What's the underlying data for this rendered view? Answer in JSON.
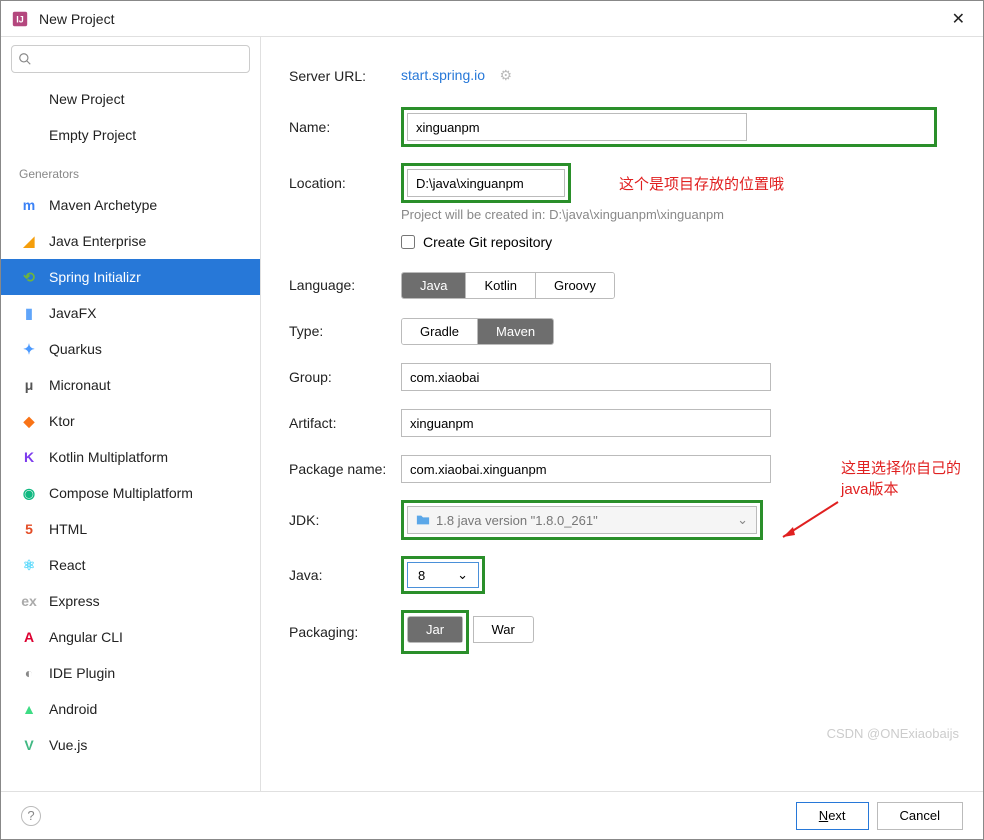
{
  "window": {
    "title": "New Project"
  },
  "sidebar": {
    "top_items": [
      {
        "label": "New Project",
        "icon": ""
      },
      {
        "label": "Empty Project",
        "icon": ""
      }
    ],
    "generators_header": "Generators",
    "generators": [
      {
        "label": "Maven Archetype",
        "icon_color": "#3b82f6",
        "icon": "m"
      },
      {
        "label": "Java Enterprise",
        "icon_color": "#f59e0b",
        "icon": "◢"
      },
      {
        "label": "Spring Initializr",
        "icon_color": "#6db33f",
        "icon": "⟲",
        "selected": true
      },
      {
        "label": "JavaFX",
        "icon_color": "#60a5fa",
        "icon": "▮"
      },
      {
        "label": "Quarkus",
        "icon_color": "#4c9aff",
        "icon": "✦"
      },
      {
        "label": "Micronaut",
        "icon_color": "#555",
        "icon": "μ"
      },
      {
        "label": "Ktor",
        "icon_color": "#f97316",
        "icon": "◆"
      },
      {
        "label": "Kotlin Multiplatform",
        "icon_color": "#7c3aed",
        "icon": "K"
      },
      {
        "label": "Compose Multiplatform",
        "icon_color": "#10b981",
        "icon": "◉"
      },
      {
        "label": "HTML",
        "icon_color": "#e34c26",
        "icon": "5"
      },
      {
        "label": "React",
        "icon_color": "#61dafb",
        "icon": "⚛"
      },
      {
        "label": "Express",
        "icon_color": "#aaa",
        "icon": "ex"
      },
      {
        "label": "Angular CLI",
        "icon_color": "#dd0031",
        "icon": "A"
      },
      {
        "label": "IDE Plugin",
        "icon_color": "#888",
        "icon": "◐"
      },
      {
        "label": "Android",
        "icon_color": "#3ddc84",
        "icon": "▲"
      },
      {
        "label": "Vue.js",
        "icon_color": "#41b883",
        "icon": "V"
      }
    ]
  },
  "form": {
    "server_url_label": "Server URL:",
    "server_url": "start.spring.io",
    "name_label": "Name:",
    "name_value": "xinguanpm",
    "location_label": "Location:",
    "location_value": "D:\\java\\xinguanpm",
    "location_hint": "Project will be created in: D:\\java\\xinguanpm\\xinguanpm",
    "git_checkbox": "Create Git repository",
    "language_label": "Language:",
    "language_options": [
      "Java",
      "Kotlin",
      "Groovy"
    ],
    "language_active": 0,
    "type_label": "Type:",
    "type_options": [
      "Gradle",
      "Maven"
    ],
    "type_active": 1,
    "group_label": "Group:",
    "group_value": "com.xiaobai",
    "artifact_label": "Artifact:",
    "artifact_value": "xinguanpm",
    "package_label": "Package name:",
    "package_value": "com.xiaobai.xinguanpm",
    "jdk_label": "JDK:",
    "jdk_value": "1.8 java version \"1.8.0_261\"",
    "java_label": "Java:",
    "java_value": "8",
    "packaging_label": "Packaging:",
    "packaging_options": [
      "Jar",
      "War"
    ],
    "packaging_active": 0
  },
  "annotations": {
    "location_note": "这个是项目存放的位置哦",
    "jdk_note_line1": "这里选择你自己的",
    "jdk_note_line2": "java版本"
  },
  "footer": {
    "next": "Next",
    "cancel": "Cancel"
  },
  "watermark": "CSDN @ONExiaobaijs",
  "colors": {
    "highlight": "#2a8f2a",
    "annotation": "#e02020",
    "selected_bg": "#2778d8"
  }
}
